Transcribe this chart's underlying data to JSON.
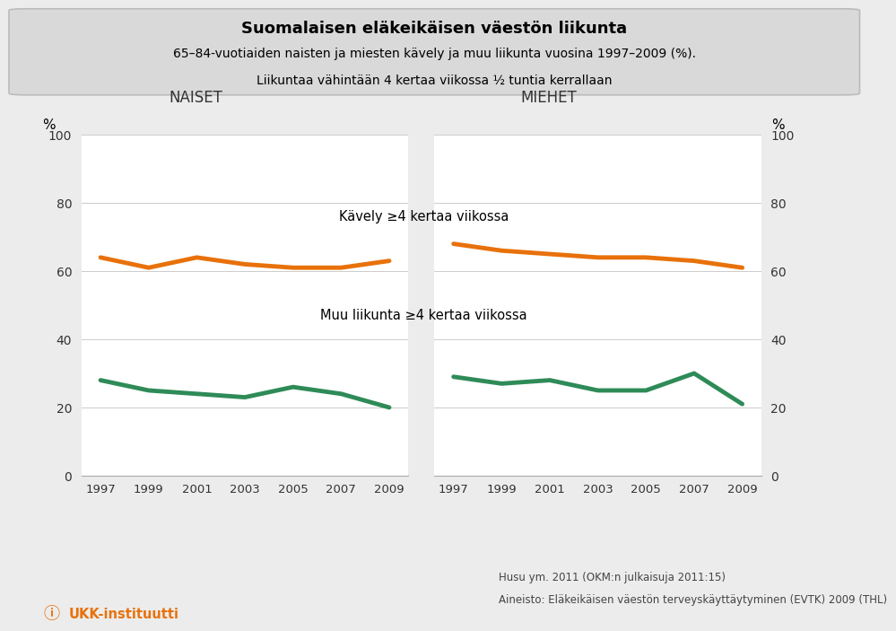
{
  "title_line1": "Suomalaisen eläkeikäisen väestön liikunta",
  "title_line2": "65–84-vuotiaiden naisten ja miesten kävely ja muu liikunta vuosina 1997–2009 (%).",
  "title_line3": "Liikuntaa vähintään 4 kertaa viikossa ½ tuntia kerrallaan",
  "years": [
    1997,
    1999,
    2001,
    2003,
    2005,
    2007,
    2009
  ],
  "naiset_kavely": [
    64,
    61,
    64,
    62,
    61,
    61,
    63
  ],
  "naiset_muu": [
    28,
    25,
    24,
    23,
    26,
    24,
    20
  ],
  "miehet_kavely": [
    68,
    66,
    65,
    64,
    64,
    63,
    61
  ],
  "miehet_muu": [
    29,
    27,
    28,
    25,
    25,
    30,
    21
  ],
  "kavely_label": "Kävely ≥4 kertaa viikossa",
  "muu_label": "Muu liikunta ≥4 kertaa viikossa",
  "naiset_label": "NAISET",
  "miehet_label": "MIEHET",
  "pct_label": "%",
  "orange_color": "#E8710A",
  "green_color": "#2E8B57",
  "ylim": [
    0,
    100
  ],
  "yticks": [
    0,
    20,
    40,
    60,
    80,
    100
  ],
  "bg_color": "#ececec",
  "plot_bg": "#ffffff",
  "footer_text1": "Husu ym. 2011 (OKM:n julkaisuja 2011:15)",
  "footer_text2": "Aineisto: Eläkeikäisen väestön terveyskäyttäytyminen (EVTK) 2009 (THL)",
  "ukk_text": "UKK-instituutti",
  "title_box_color": "#d9d9d9",
  "linewidth": 3.5
}
